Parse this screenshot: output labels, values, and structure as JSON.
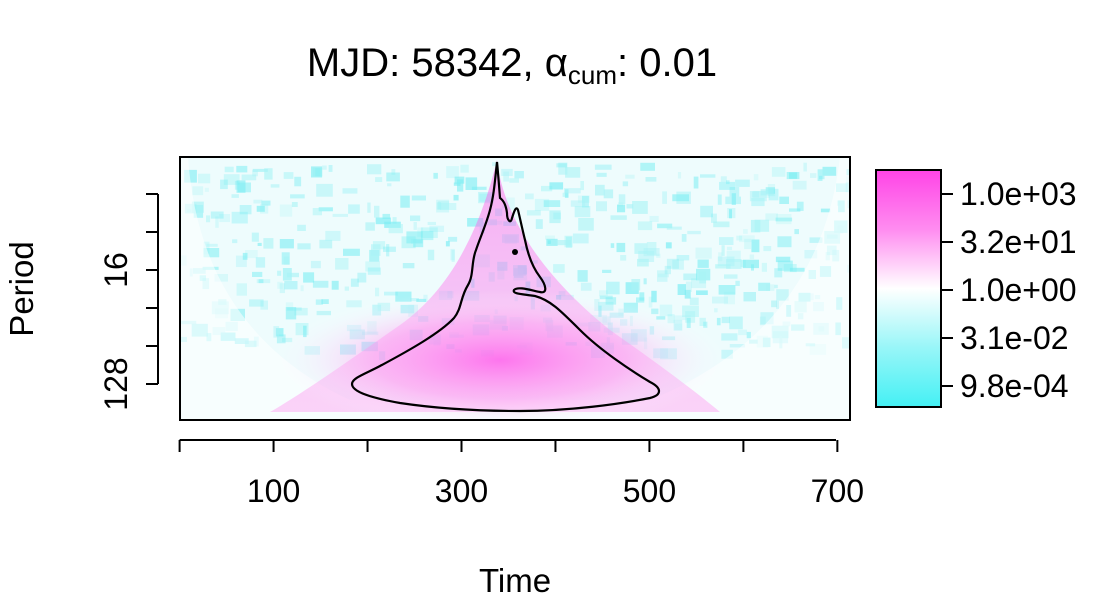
{
  "chart_data": {
    "type": "heatmap",
    "title_prefix": "MJD: 58342, ",
    "title_symbol": "α",
    "title_subscript": "cum",
    "title_suffix": ": 0.01",
    "xlabel": "Time",
    "ylabel": "Period",
    "xlim": [
      0,
      710
    ],
    "x_ticks": [
      0,
      100,
      200,
      300,
      400,
      500,
      600,
      700
    ],
    "x_tick_labels": [
      "100",
      "300",
      "500",
      "700"
    ],
    "x_tick_label_values": [
      100,
      300,
      500,
      700
    ],
    "y_scale": "log2",
    "ylim_period": [
      2,
      215
    ],
    "y_ticks": [
      4,
      8,
      16,
      32,
      64,
      128
    ],
    "y_tick_labels": [
      "16",
      "128"
    ],
    "y_tick_label_values": [
      16,
      128
    ],
    "colorbar": {
      "scale": "log",
      "labels": [
        "1.0e+03",
        "3.2e+01",
        "1.0e+00",
        "3.1e-02",
        "9.8e-04"
      ],
      "values": [
        1000,
        32,
        1,
        0.031,
        0.00098
      ],
      "color_high": "#ff44e6",
      "color_mid": "#ffffff",
      "color_low": "#44f0f4"
    },
    "significance_contour": {
      "alpha": 0.01,
      "peak_time": 340,
      "peak_period": 2.1,
      "base_time_range": [
        185,
        510
      ],
      "base_period": 135
    },
    "grid": false,
    "legend": "right"
  }
}
